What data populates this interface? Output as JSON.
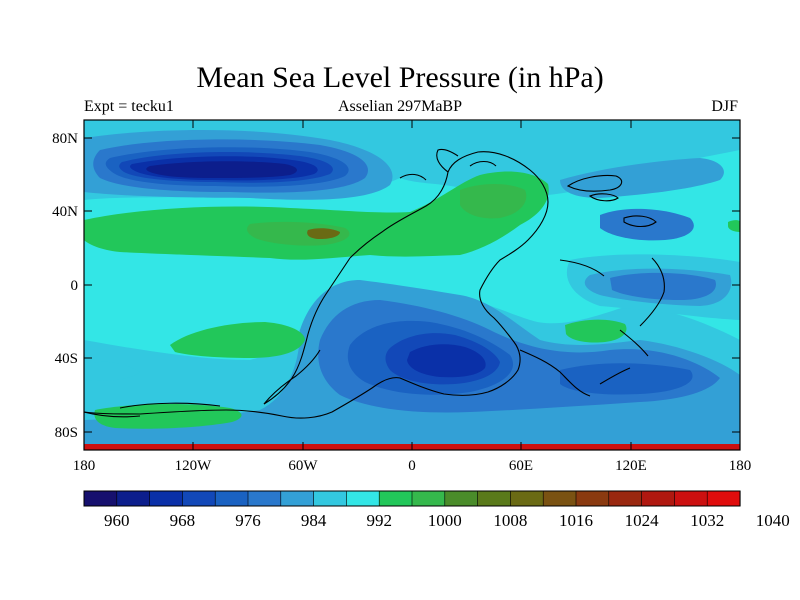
{
  "title": "Mean Sea Level Pressure (in hPa)",
  "subtitle_left": "Expt = tecku1",
  "subtitle_center": "Asselian 297MaBP",
  "subtitle_right": "DJF",
  "lat_labels": [
    "80N",
    "40N",
    "0",
    "40S",
    "80S"
  ],
  "lon_labels": [
    "180",
    "120W",
    "60W",
    "0",
    "60E",
    "120E",
    "180"
  ],
  "colorbar": {
    "colors": [
      "#16106e",
      "#0c1e8c",
      "#0a30a8",
      "#1248b8",
      "#1a62c2",
      "#2a78cc",
      "#33a0d6",
      "#33c8e0",
      "#33e6e6",
      "#22c75a",
      "#35b84c",
      "#4a8c2a",
      "#5a7a1a",
      "#6a6a14",
      "#7a5212",
      "#8a3a10",
      "#9a2810",
      "#b01810",
      "#cc1010",
      "#e00c0c"
    ],
    "labels": [
      "960",
      "968",
      "976",
      "984",
      "992",
      "1000",
      "1008",
      "1016",
      "1024",
      "1032",
      "1040"
    ]
  },
  "chart_data": {
    "type": "contour-map",
    "title": "Mean Sea Level Pressure (in hPa)",
    "variable": "Mean Sea Level Pressure",
    "units": "hPa",
    "experiment": "tecku1",
    "period": "Asselian 297MaBP",
    "season": "DJF",
    "projection": "cylindrical equidistant",
    "lon_range": [
      -180,
      180
    ],
    "lat_range": [
      -90,
      90
    ],
    "contour_levels": [
      960,
      964,
      968,
      972,
      976,
      980,
      984,
      988,
      992,
      996,
      1000,
      1004,
      1008,
      1012,
      1016,
      1020,
      1024,
      1028,
      1032,
      1036,
      1040
    ],
    "colorbar_labels": [
      960,
      968,
      976,
      984,
      992,
      1000,
      1008,
      1016,
      1024,
      1032,
      1040
    ]
  }
}
